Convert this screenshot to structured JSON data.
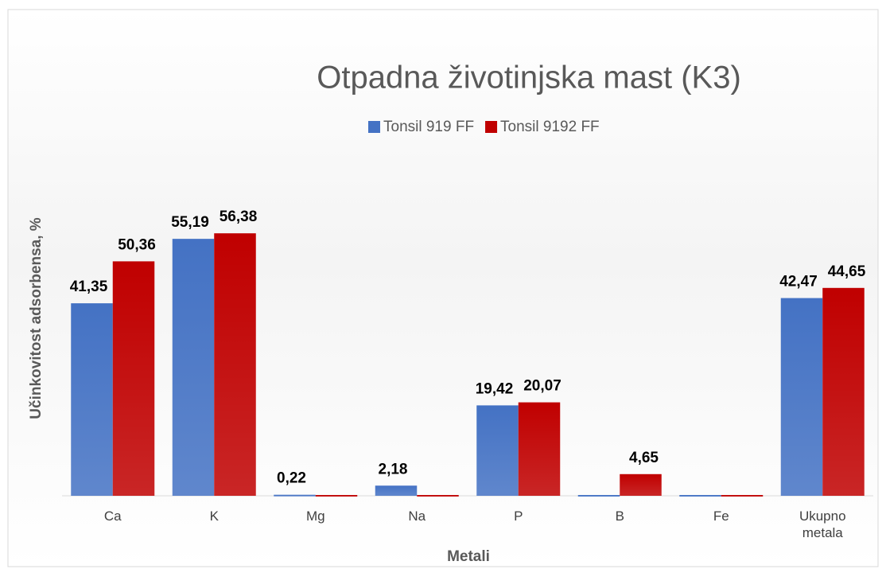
{
  "chart_data": {
    "type": "bar",
    "title": "Otpadna životinjska mast (K3)",
    "x_label": "Metali",
    "y_label": "Učinkovitost adsorbensa, %",
    "categories": [
      "Ca",
      "K",
      "Mg",
      "Na",
      "P",
      "B",
      "Fe",
      "Ukupno metala"
    ],
    "series": [
      {
        "name": "Tonsil 919 FF",
        "color": "#4472c4",
        "values": [
          41.35,
          55.19,
          0.22,
          2.18,
          19.42,
          0,
          0,
          42.47
        ],
        "value_labels": [
          "41,35",
          "55,19",
          "0,22",
          "2,18",
          "19,42",
          null,
          null,
          "42,47"
        ]
      },
      {
        "name": "Tonsil 9192 FF",
        "color": "#c00000",
        "values": [
          50.36,
          56.38,
          0,
          0,
          20.07,
          4.65,
          0,
          44.65
        ],
        "value_labels": [
          "50,36",
          "56,38",
          null,
          null,
          "20,07",
          "4,65",
          null,
          "44,65"
        ]
      }
    ],
    "ylim": [
      0,
      60
    ],
    "legend": "top"
  }
}
